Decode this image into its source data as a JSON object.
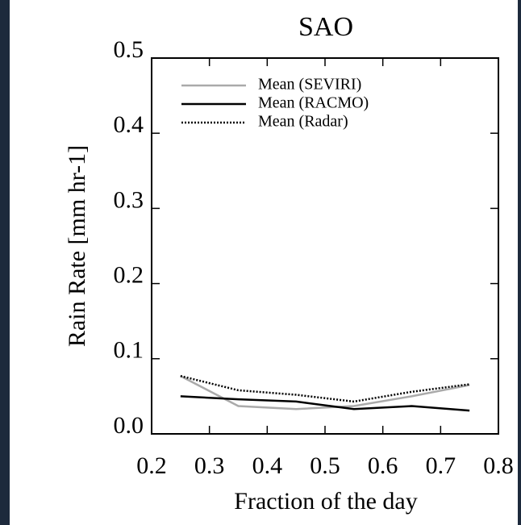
{
  "chart_data": {
    "type": "line",
    "title": "SAO",
    "xlabel": "Fraction of the day",
    "ylabel": "Rain Rate [mm hr-1]",
    "x": [
      0.25,
      0.35,
      0.45,
      0.55,
      0.65,
      0.75
    ],
    "series": [
      {
        "name": "Mean (SEVIRI)",
        "color": "#aaaaaa",
        "linestyle": "solid",
        "values": [
          0.077,
          0.037,
          0.033,
          0.037,
          0.05,
          0.065
        ]
      },
      {
        "name": "Mean (RACMO)",
        "color": "#000000",
        "linestyle": "solid",
        "values": [
          0.05,
          0.046,
          0.043,
          0.033,
          0.037,
          0.031
        ]
      },
      {
        "name": "Mean (Radar)",
        "color": "#000000",
        "linestyle": "dotted",
        "values": [
          0.077,
          0.058,
          0.052,
          0.043,
          0.056,
          0.066
        ]
      }
    ],
    "xlim": [
      0.2,
      0.8
    ],
    "xticks": [
      0.2,
      0.3,
      0.4,
      0.5,
      0.6,
      0.7,
      0.8
    ],
    "ylim": [
      0,
      0.5
    ],
    "yticks": [
      {
        "value": 0,
        "label": "0.0"
      },
      0.1,
      0.2,
      0.3,
      0.4,
      0.5
    ],
    "legend": "upper left"
  }
}
